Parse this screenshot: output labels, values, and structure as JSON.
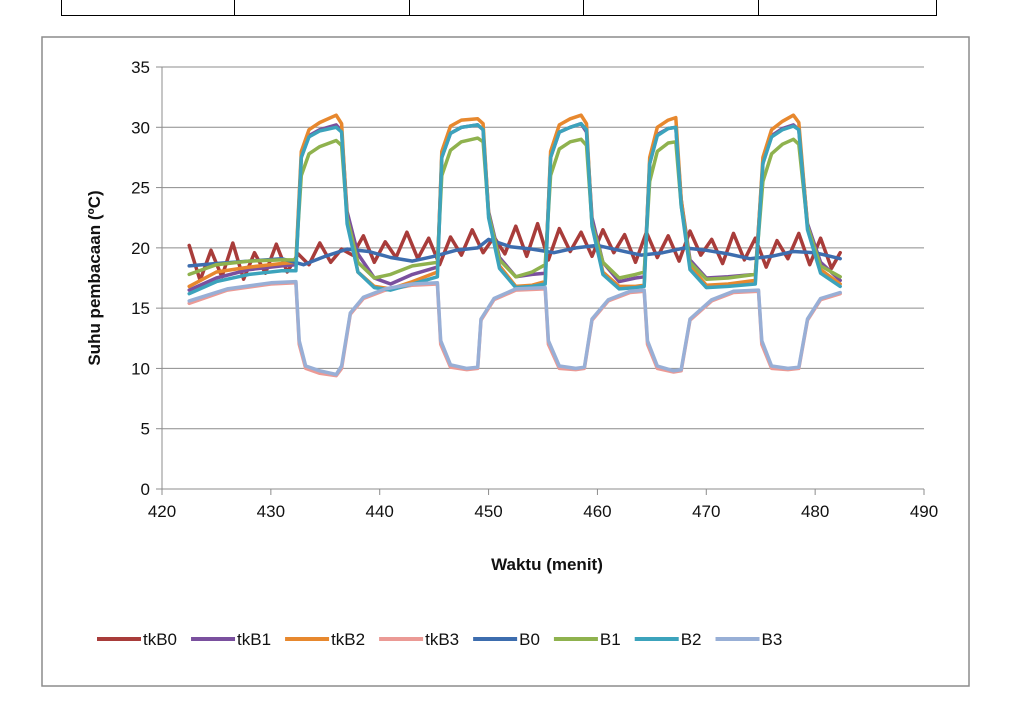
{
  "chart_data": {
    "type": "line",
    "title": "",
    "xlabel": "Waktu (menit)",
    "ylabel": "Suhu pembacaan (ºC)",
    "xlim": [
      420,
      490
    ],
    "ylim": [
      0,
      35
    ],
    "xticks": [
      "420",
      "430",
      "440",
      "450",
      "460",
      "470",
      "480",
      "490"
    ],
    "yticks": [
      "0",
      "5",
      "10",
      "15",
      "20",
      "25",
      "30",
      "35"
    ],
    "grid": "horizontal",
    "legend_position": "bottom",
    "series": [
      {
        "name": "tkB0",
        "color": "#A83C3A",
        "x": [
          422.5,
          423.5,
          424.5,
          425.5,
          426.5,
          427.5,
          428.5,
          429.5,
          430.5,
          431.5,
          432.5,
          433.5,
          434.5,
          435.5,
          436.5,
          437.5,
          438.5,
          439.5,
          440.5,
          441.5,
          442.5,
          443.5,
          444.5,
          445.5,
          446.5,
          447.5,
          448.5,
          449.5,
          450.5,
          451.5,
          452.5,
          453.5,
          454.5,
          455.5,
          456.5,
          457.5,
          458.5,
          459.5,
          460.5,
          461.5,
          462.5,
          463.5,
          464.5,
          465.5,
          466.5,
          467.5,
          468.5,
          469.5,
          470.5,
          471.5,
          472.5,
          473.5,
          474.5,
          475.5,
          476.5,
          477.5,
          478.5,
          479.5,
          480.5,
          481.5,
          482.3
        ],
        "y": [
          20.2,
          17.3,
          19.8,
          17.6,
          20.4,
          17.4,
          19.6,
          17.9,
          20.3,
          18.0,
          19.5,
          18.6,
          20.4,
          18.8,
          19.9,
          19.4,
          21.0,
          18.8,
          20.5,
          19.2,
          21.3,
          19.1,
          20.8,
          18.6,
          20.9,
          19.4,
          21.5,
          19.6,
          20.9,
          19.5,
          21.8,
          19.3,
          22.0,
          19.0,
          21.6,
          19.7,
          21.3,
          19.3,
          21.5,
          19.6,
          21.1,
          18.8,
          21.3,
          19.2,
          21.0,
          18.9,
          21.4,
          19.4,
          20.7,
          18.7,
          21.2,
          19.0,
          20.8,
          18.4,
          20.6,
          19.1,
          21.2,
          18.6,
          20.8,
          18.3,
          19.6
        ]
      },
      {
        "name": "tkB1",
        "color": "#7A509E",
        "x": [
          422.5,
          425,
          428,
          431,
          432.3,
          432.8,
          433.5,
          434.5,
          436.0,
          436.5,
          437.0,
          438.0,
          439.5,
          441.0,
          443.0,
          445.3,
          445.7,
          446.5,
          447.5,
          449.0,
          449.5,
          450.0,
          451.0,
          452.5,
          454.0,
          455.2,
          455.7,
          456.5,
          457.5,
          458.5,
          459.0,
          459.5,
          460.5,
          462.0,
          463.5,
          464.3,
          464.8,
          465.5,
          466.5,
          467.2,
          467.7,
          468.5,
          470.0,
          472.0,
          474.5,
          475.2,
          476.0,
          477.0,
          478.0,
          478.5,
          479.3,
          480.5,
          482.3
        ],
        "y": [
          16.5,
          17.5,
          18.2,
          18.5,
          18.6,
          27.5,
          29.3,
          29.8,
          30.2,
          29.7,
          23.0,
          19.5,
          17.5,
          17.0,
          17.8,
          18.4,
          27.5,
          29.5,
          30.0,
          30.2,
          29.8,
          23.0,
          19.2,
          17.6,
          17.8,
          17.9,
          27.5,
          29.6,
          30.0,
          30.3,
          29.6,
          22.5,
          18.8,
          17.2,
          17.5,
          17.6,
          27.0,
          29.4,
          29.9,
          30.0,
          24.0,
          19.0,
          17.5,
          17.6,
          17.8,
          27.0,
          29.3,
          29.9,
          30.2,
          29.8,
          22.0,
          18.8,
          17.3
        ]
      },
      {
        "name": "tkB2",
        "color": "#E7882E",
        "x": [
          422.5,
          425,
          428,
          431,
          432.3,
          432.8,
          433.5,
          434.5,
          436.0,
          436.5,
          437.0,
          438.0,
          439.5,
          441.0,
          443.0,
          445.3,
          445.7,
          446.5,
          447.5,
          449.0,
          449.5,
          450.0,
          451.0,
          452.5,
          454.0,
          455.2,
          455.7,
          456.5,
          457.5,
          458.5,
          459.0,
          459.5,
          460.5,
          462.0,
          463.5,
          464.3,
          464.8,
          465.5,
          466.5,
          467.2,
          467.7,
          468.5,
          470.0,
          472.0,
          474.5,
          475.2,
          476.0,
          477.0,
          478.0,
          478.5,
          479.3,
          480.5,
          482.3
        ],
        "y": [
          16.8,
          18.0,
          18.4,
          18.7,
          18.8,
          28.0,
          29.8,
          30.4,
          31.0,
          30.3,
          22.5,
          18.0,
          16.8,
          16.6,
          17.2,
          18.0,
          28.0,
          30.1,
          30.6,
          30.7,
          30.3,
          22.8,
          18.5,
          16.8,
          16.9,
          17.2,
          28.0,
          30.2,
          30.7,
          31.0,
          30.3,
          22.0,
          18.0,
          16.8,
          16.8,
          16.9,
          27.5,
          30.0,
          30.6,
          30.8,
          24.0,
          18.5,
          16.9,
          17.0,
          17.3,
          27.5,
          29.8,
          30.5,
          31.0,
          30.4,
          21.8,
          18.2,
          17.0
        ]
      },
      {
        "name": "tkB3",
        "color": "#EB9A95",
        "x": [
          422.5,
          426,
          430,
          432.3,
          432.6,
          433.2,
          434.5,
          436.0,
          436.5,
          437.3,
          438.5,
          440.5,
          443.0,
          445.3,
          445.6,
          446.5,
          448.0,
          449.0,
          449.3,
          450.5,
          452.5,
          455.2,
          455.5,
          456.5,
          458.0,
          458.8,
          459.5,
          461.0,
          463.0,
          464.3,
          464.6,
          465.5,
          467.0,
          467.7,
          468.5,
          470.5,
          472.5,
          474.8,
          475.1,
          476.0,
          477.5,
          478.5,
          479.3,
          480.5,
          482.3
        ],
        "y": [
          15.4,
          16.5,
          17.0,
          17.1,
          12.0,
          10.0,
          9.6,
          9.4,
          10.0,
          14.5,
          15.8,
          16.5,
          16.9,
          17.0,
          12.0,
          10.1,
          9.9,
          10.0,
          14.0,
          15.7,
          16.5,
          16.6,
          12.0,
          10.0,
          9.9,
          10.0,
          14.0,
          15.6,
          16.3,
          16.4,
          12.0,
          10.0,
          9.7,
          9.8,
          14.0,
          15.6,
          16.3,
          16.4,
          12.0,
          10.0,
          9.9,
          10.0,
          14.0,
          15.7,
          16.2
        ]
      },
      {
        "name": "B0",
        "color": "#3D6DAE",
        "x": [
          422.5,
          425,
          428,
          431,
          433,
          435,
          437,
          439,
          441,
          443,
          445,
          447,
          449,
          450,
          452,
          454,
          456,
          458,
          460,
          462,
          464,
          466,
          468,
          470,
          472,
          474,
          476,
          478,
          480,
          482.3
        ],
        "y": [
          18.5,
          18.7,
          18.9,
          19.1,
          18.6,
          19.3,
          19.9,
          19.7,
          19.2,
          18.9,
          19.3,
          19.8,
          20.0,
          20.7,
          20.1,
          19.9,
          19.6,
          20.0,
          20.2,
          19.8,
          19.4,
          19.6,
          20.0,
          19.8,
          19.5,
          19.1,
          19.3,
          19.7,
          19.6,
          19.1
        ]
      },
      {
        "name": "B1",
        "color": "#8FB24E",
        "x": [
          422.5,
          425,
          428,
          431,
          432.3,
          432.8,
          433.5,
          434.5,
          436.0,
          436.5,
          437.0,
          438.0,
          439.5,
          441.0,
          443.0,
          445.3,
          445.7,
          446.5,
          447.5,
          449.0,
          449.5,
          450.0,
          451.0,
          452.5,
          454.0,
          455.2,
          455.7,
          456.5,
          457.5,
          458.5,
          459.0,
          459.5,
          460.5,
          462.0,
          463.5,
          464.3,
          464.8,
          465.5,
          466.5,
          467.2,
          467.7,
          468.5,
          470.0,
          472.0,
          474.5,
          475.2,
          476.0,
          477.0,
          478.0,
          478.5,
          479.3,
          480.5,
          482.3
        ],
        "y": [
          17.8,
          18.6,
          18.9,
          19.0,
          19.0,
          26.0,
          27.8,
          28.4,
          28.9,
          28.5,
          22.5,
          18.8,
          17.5,
          17.8,
          18.5,
          18.8,
          26.0,
          28.1,
          28.8,
          29.1,
          28.8,
          22.8,
          19.0,
          17.6,
          18.0,
          18.6,
          26.0,
          28.2,
          28.8,
          29.0,
          28.5,
          22.0,
          18.8,
          17.5,
          17.8,
          18.0,
          25.5,
          28.0,
          28.7,
          28.8,
          23.5,
          18.8,
          17.4,
          17.5,
          17.8,
          25.5,
          27.8,
          28.6,
          29.0,
          28.6,
          21.8,
          18.5,
          17.6
        ]
      },
      {
        "name": "B2",
        "color": "#3CA3BC",
        "x": [
          422.5,
          425,
          428,
          431,
          432.3,
          432.8,
          433.5,
          434.5,
          436.0,
          436.5,
          437.0,
          438.0,
          439.5,
          441.0,
          443.0,
          445.3,
          445.7,
          446.5,
          447.5,
          449.0,
          449.5,
          450.0,
          451.0,
          452.5,
          454.0,
          455.2,
          455.7,
          456.5,
          457.5,
          458.5,
          459.0,
          459.5,
          460.5,
          462.0,
          463.5,
          464.3,
          464.8,
          465.5,
          466.5,
          467.2,
          467.7,
          468.5,
          470.0,
          472.0,
          474.5,
          475.2,
          476.0,
          477.0,
          478.0,
          478.5,
          479.3,
          480.5,
          482.3
        ],
        "y": [
          16.2,
          17.2,
          17.8,
          18.1,
          18.1,
          27.5,
          29.2,
          29.7,
          30.0,
          29.6,
          22.0,
          18.0,
          16.7,
          16.5,
          17.0,
          17.6,
          27.5,
          29.5,
          30.0,
          30.2,
          29.8,
          22.5,
          18.3,
          16.7,
          16.8,
          17.0,
          27.5,
          29.6,
          30.0,
          30.3,
          29.8,
          21.8,
          17.8,
          16.6,
          16.7,
          16.8,
          27.0,
          29.3,
          29.9,
          30.0,
          23.5,
          18.2,
          16.7,
          16.8,
          17.0,
          27.0,
          29.2,
          29.8,
          30.1,
          29.8,
          21.5,
          17.9,
          16.8
        ]
      },
      {
        "name": "B3",
        "color": "#98AFD6",
        "x": [
          422.5,
          426,
          430,
          432.3,
          432.6,
          433.2,
          434.5,
          436.0,
          436.5,
          437.3,
          438.5,
          440.5,
          443.0,
          445.3,
          445.6,
          446.5,
          448.0,
          449.0,
          449.3,
          450.5,
          452.5,
          455.2,
          455.5,
          456.5,
          458.0,
          458.8,
          459.5,
          461.0,
          463.0,
          464.3,
          464.6,
          465.5,
          467.0,
          467.7,
          468.5,
          470.5,
          472.5,
          474.8,
          475.1,
          476.0,
          477.5,
          478.5,
          479.3,
          480.5,
          482.3
        ],
        "y": [
          15.6,
          16.6,
          17.1,
          17.2,
          12.3,
          10.2,
          9.8,
          9.5,
          10.2,
          14.6,
          15.9,
          16.6,
          17.0,
          17.1,
          12.3,
          10.3,
          10.0,
          10.1,
          14.1,
          15.8,
          16.6,
          16.7,
          12.3,
          10.2,
          10.0,
          10.1,
          14.1,
          15.7,
          16.4,
          16.5,
          12.3,
          10.2,
          9.8,
          9.9,
          14.1,
          15.7,
          16.4,
          16.5,
          12.3,
          10.2,
          10.0,
          10.1,
          14.1,
          15.8,
          16.3
        ]
      }
    ]
  }
}
